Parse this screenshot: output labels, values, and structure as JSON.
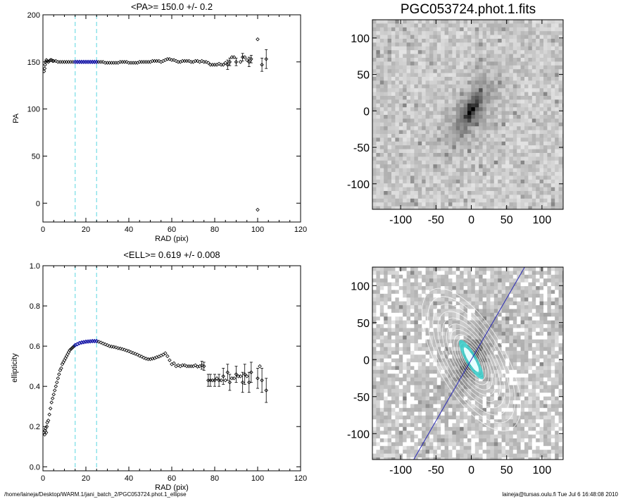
{
  "footer": {
    "left": "/home/laineja/Desktop/WARM.1/jani_batch_2/PGC053724.phot.1_ellipse",
    "right": "laineja@tursas.oulu.fi  Tue Jul  6 16:48:08 2010"
  },
  "chart_data": [
    {
      "type": "scatter",
      "title": "<PA>= 150.0 +/-   0.2",
      "xlabel": "RAD (pix)",
      "ylabel": "PA",
      "xlim": [
        0,
        120
      ],
      "ylim": [
        -20,
        200
      ],
      "xticks": [
        0,
        20,
        40,
        60,
        80,
        100,
        120
      ],
      "yticks": [
        0,
        50,
        100,
        150,
        200
      ],
      "vlines": [
        15,
        25
      ],
      "vline_color": "#7fe0e8",
      "mean_range": [
        15,
        25
      ],
      "mean_color": "#1a1aa8",
      "points": [
        [
          0.5,
          140
        ],
        [
          0.8,
          143
        ],
        [
          1.0,
          147
        ],
        [
          1.3,
          150
        ],
        [
          1.6,
          152
        ],
        [
          2.0,
          151
        ],
        [
          2.5,
          150
        ],
        [
          3.0,
          151
        ],
        [
          3.5,
          152
        ],
        [
          4.0,
          152
        ],
        [
          4.5,
          151
        ],
        [
          5.0,
          151
        ],
        [
          6.0,
          151
        ],
        [
          7.0,
          150
        ],
        [
          8.0,
          150
        ],
        [
          9.0,
          150
        ],
        [
          10.0,
          150
        ],
        [
          11.0,
          150
        ],
        [
          12.0,
          150
        ],
        [
          13.0,
          150
        ],
        [
          14.0,
          150
        ],
        [
          15.0,
          150
        ],
        [
          16.0,
          150
        ],
        [
          17.0,
          150
        ],
        [
          18.0,
          150
        ],
        [
          19.0,
          150
        ],
        [
          20.0,
          150
        ],
        [
          21.0,
          150
        ],
        [
          22.0,
          150
        ],
        [
          23.0,
          150
        ],
        [
          24.0,
          150
        ],
        [
          25.0,
          150
        ],
        [
          26.0,
          150
        ],
        [
          27.0,
          150
        ],
        [
          28.0,
          150
        ],
        [
          29.0,
          149
        ],
        [
          30.0,
          149
        ],
        [
          31.0,
          149
        ],
        [
          32.0,
          149
        ],
        [
          33.0,
          149
        ],
        [
          34.0,
          149
        ],
        [
          35.0,
          149
        ],
        [
          36.0,
          150
        ],
        [
          37.0,
          150
        ],
        [
          38.0,
          150
        ],
        [
          39.0,
          150
        ],
        [
          40.0,
          149
        ],
        [
          41.0,
          149
        ],
        [
          42.0,
          149
        ],
        [
          43.0,
          149
        ],
        [
          44.0,
          149
        ],
        [
          45.0,
          150
        ],
        [
          46.0,
          150
        ],
        [
          47.0,
          150
        ],
        [
          48.0,
          150
        ],
        [
          49.0,
          150
        ],
        [
          50.0,
          150
        ],
        [
          51.0,
          151
        ],
        [
          52.0,
          151
        ],
        [
          53.0,
          151
        ],
        [
          54.0,
          151
        ],
        [
          55.0,
          150
        ],
        [
          56.0,
          151
        ],
        [
          57.0,
          152
        ],
        [
          58.0,
          153
        ],
        [
          59.0,
          153
        ],
        [
          60.0,
          152
        ],
        [
          61.0,
          152
        ],
        [
          62.0,
          151
        ],
        [
          63.0,
          150
        ],
        [
          64.0,
          150
        ],
        [
          65.0,
          151
        ],
        [
          66.0,
          151
        ],
        [
          67.0,
          151
        ],
        [
          68.0,
          151
        ],
        [
          69.0,
          150
        ],
        [
          70.0,
          150
        ],
        [
          71.0,
          151
        ],
        [
          72.0,
          151
        ],
        [
          73.0,
          150
        ],
        [
          74.0,
          151
        ],
        [
          75.0,
          150
        ],
        [
          76.0,
          150
        ],
        [
          77.0,
          149
        ],
        [
          78.0,
          147
        ],
        [
          79.0,
          147
        ],
        [
          80.0,
          147
        ],
        [
          81.0,
          147
        ],
        [
          82.0,
          148
        ],
        [
          83.0,
          147
        ],
        [
          84.0,
          147
        ],
        [
          85.0,
          149
        ],
        [
          86.0,
          147
        ],
        [
          87.0,
          150
        ],
        [
          88.0,
          155
        ],
        [
          89.0,
          155
        ],
        [
          90.0,
          150
        ],
        [
          92.0,
          150
        ],
        [
          93.0,
          155
        ],
        [
          94.0,
          155
        ],
        [
          95.0,
          152
        ],
        [
          96.0,
          150
        ],
        [
          97.0,
          153
        ],
        [
          100.0,
          174
        ],
        [
          100.0,
          -7
        ],
        [
          102.0,
          147
        ],
        [
          104.0,
          153
        ]
      ],
      "errorbars": [
        [
          86.0,
          147,
          5
        ],
        [
          87.0,
          150,
          4
        ],
        [
          90.0,
          150,
          4
        ],
        [
          93.0,
          155,
          4
        ],
        [
          96.0,
          150,
          5
        ],
        [
          97.0,
          153,
          4
        ],
        [
          102.0,
          147,
          7
        ],
        [
          104.0,
          153,
          10
        ]
      ]
    },
    {
      "type": "scatter",
      "title": "<ELL>= 0.619 +/-  0.008",
      "xlabel": "RAD (pix)",
      "ylabel": "ellipticity",
      "xlim": [
        0,
        120
      ],
      "ylim": [
        -0.02,
        1.0
      ],
      "xticks": [
        0,
        20,
        40,
        60,
        80,
        100,
        120
      ],
      "yticks": [
        0.0,
        0.2,
        0.4,
        0.6,
        0.8,
        1.0
      ],
      "ytick_labels": [
        "0.0",
        "0.2",
        "0.4",
        "0.6",
        "0.8",
        "1.0"
      ],
      "vlines": [
        15,
        25
      ],
      "vline_color": "#7fe0e8",
      "mean_range": [
        15,
        25
      ],
      "mean_color": "#1a1aa8",
      "points": [
        [
          0.5,
          0.17
        ],
        [
          0.8,
          0.16
        ],
        [
          1.0,
          0.18
        ],
        [
          1.2,
          0.19
        ],
        [
          1.5,
          0.17
        ],
        [
          1.8,
          0.2
        ],
        [
          2.0,
          0.22
        ],
        [
          2.5,
          0.23
        ],
        [
          3.0,
          0.26
        ],
        [
          3.5,
          0.29
        ],
        [
          4.0,
          0.32
        ],
        [
          4.5,
          0.34
        ],
        [
          5.0,
          0.36
        ],
        [
          5.5,
          0.38
        ],
        [
          6.0,
          0.4
        ],
        [
          6.5,
          0.42
        ],
        [
          7.0,
          0.44
        ],
        [
          7.5,
          0.46
        ],
        [
          8.0,
          0.48
        ],
        [
          8.5,
          0.49
        ],
        [
          9.0,
          0.51
        ],
        [
          9.5,
          0.52
        ],
        [
          10.0,
          0.53
        ],
        [
          10.5,
          0.54
        ],
        [
          11.0,
          0.55
        ],
        [
          11.5,
          0.56
        ],
        [
          12.0,
          0.57
        ],
        [
          12.5,
          0.58
        ],
        [
          13.0,
          0.585
        ],
        [
          13.5,
          0.59
        ],
        [
          14.0,
          0.595
        ],
        [
          14.5,
          0.6
        ],
        [
          15.0,
          0.605
        ],
        [
          16.0,
          0.61
        ],
        [
          17.0,
          0.615
        ],
        [
          18.0,
          0.618
        ],
        [
          19.0,
          0.62
        ],
        [
          20.0,
          0.622
        ],
        [
          21.0,
          0.623
        ],
        [
          22.0,
          0.624
        ],
        [
          23.0,
          0.625
        ],
        [
          24.0,
          0.625
        ],
        [
          25.0,
          0.625
        ],
        [
          26.0,
          0.622
        ],
        [
          27.0,
          0.618
        ],
        [
          28.0,
          0.613
        ],
        [
          29.0,
          0.609
        ],
        [
          30.0,
          0.605
        ],
        [
          31.0,
          0.6
        ],
        [
          32.0,
          0.598
        ],
        [
          33.0,
          0.596
        ],
        [
          34.0,
          0.594
        ],
        [
          35.0,
          0.59
        ],
        [
          36.0,
          0.588
        ],
        [
          37.0,
          0.585
        ],
        [
          38.0,
          0.582
        ],
        [
          39.0,
          0.578
        ],
        [
          40.0,
          0.575
        ],
        [
          41.0,
          0.57
        ],
        [
          42.0,
          0.566
        ],
        [
          43.0,
          0.562
        ],
        [
          44.0,
          0.558
        ],
        [
          45.0,
          0.552
        ],
        [
          46.0,
          0.548
        ],
        [
          47.0,
          0.542
        ],
        [
          48.0,
          0.538
        ],
        [
          49.0,
          0.535
        ],
        [
          50.0,
          0.535
        ],
        [
          51.0,
          0.538
        ],
        [
          52.0,
          0.54
        ],
        [
          53.0,
          0.545
        ],
        [
          54.0,
          0.548
        ],
        [
          55.0,
          0.553
        ],
        [
          56.0,
          0.558
        ],
        [
          57.0,
          0.565
        ],
        [
          58.0,
          0.55
        ],
        [
          59.0,
          0.53
        ],
        [
          60.0,
          0.51
        ],
        [
          61.0,
          0.515
        ],
        [
          62.0,
          0.5
        ],
        [
          63.0,
          0.505
        ],
        [
          64.0,
          0.5
        ],
        [
          65.0,
          0.505
        ],
        [
          66.0,
          0.505
        ],
        [
          67.0,
          0.5
        ],
        [
          68.0,
          0.5
        ],
        [
          69.0,
          0.5
        ],
        [
          70.0,
          0.5
        ],
        [
          71.0,
          0.505
        ],
        [
          72.0,
          0.498
        ],
        [
          73.0,
          0.5
        ],
        [
          74.0,
          0.505
        ],
        [
          75.0,
          0.5
        ],
        [
          77.0,
          0.43
        ],
        [
          78.0,
          0.43
        ],
        [
          79.0,
          0.43
        ],
        [
          80.0,
          0.43
        ],
        [
          81.0,
          0.44
        ],
        [
          82.0,
          0.43
        ],
        [
          83.0,
          0.43
        ],
        [
          84.0,
          0.45
        ],
        [
          85.0,
          0.43
        ],
        [
          86.0,
          0.47
        ],
        [
          87.0,
          0.42
        ],
        [
          88.0,
          0.44
        ],
        [
          89.0,
          0.44
        ],
        [
          90.0,
          0.46
        ],
        [
          91.0,
          0.45
        ],
        [
          92.0,
          0.45
        ],
        [
          93.0,
          0.42
        ],
        [
          94.0,
          0.46
        ],
        [
          95.0,
          0.45
        ],
        [
          96.0,
          0.42
        ],
        [
          97.0,
          0.47
        ],
        [
          100.0,
          0.44
        ],
        [
          101.0,
          0.5
        ],
        [
          102.0,
          0.43
        ],
        [
          104.0,
          0.38
        ]
      ],
      "errorbars": [
        [
          74.0,
          0.505,
          0.02
        ],
        [
          75.0,
          0.5,
          0.02
        ],
        [
          77.0,
          0.43,
          0.03
        ],
        [
          78.0,
          0.43,
          0.03
        ],
        [
          80.0,
          0.43,
          0.03
        ],
        [
          82.0,
          0.43,
          0.03
        ],
        [
          84.0,
          0.45,
          0.04
        ],
        [
          86.0,
          0.47,
          0.04
        ],
        [
          87.0,
          0.42,
          0.04
        ],
        [
          90.0,
          0.46,
          0.04
        ],
        [
          93.0,
          0.42,
          0.05
        ],
        [
          94.0,
          0.46,
          0.05
        ],
        [
          96.0,
          0.42,
          0.05
        ],
        [
          97.0,
          0.47,
          0.05
        ],
        [
          100.0,
          0.44,
          0.05
        ],
        [
          102.0,
          0.43,
          0.06
        ],
        [
          104.0,
          0.38,
          0.06
        ]
      ]
    },
    {
      "type": "heatmap",
      "title": "PGC053724.phot.1.fits",
      "xlim": [
        -140,
        130
      ],
      "ylim": [
        -135,
        125
      ],
      "xticks": [
        -100,
        -50,
        0,
        50,
        100
      ],
      "yticks": [
        -100,
        -50,
        0,
        50,
        100
      ],
      "colormap": "inverted-grayscale",
      "galaxy": {
        "center": [
          0,
          0
        ],
        "position_angle_deg": 150,
        "ellipticity": 0.62
      }
    },
    {
      "type": "heatmap",
      "title": "",
      "xlim": [
        -140,
        130
      ],
      "ylim": [
        -135,
        125
      ],
      "xticks": [
        -100,
        -50,
        0,
        50,
        100
      ],
      "yticks": [
        -100,
        -50,
        0,
        50,
        100
      ],
      "colormap": "inverted-grayscale",
      "overlay": {
        "contours": "ellipse isophotes",
        "contour_color": "#ffffff",
        "core_color": "#28d4d0",
        "major_axis_color": "#2a2ab8",
        "position_angle_deg": 150
      }
    }
  ]
}
